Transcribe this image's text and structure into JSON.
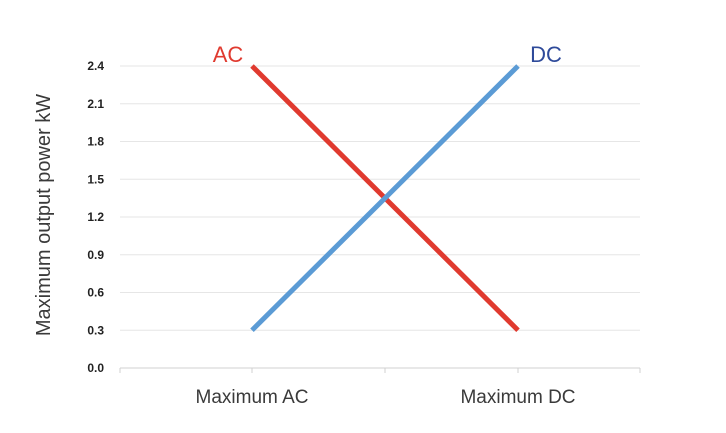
{
  "chart_data": {
    "type": "line",
    "categories": [
      "Maximum AC",
      "Maximum DC"
    ],
    "series": [
      {
        "name": "AC",
        "values": [
          2.4,
          0.3
        ],
        "color": "#e03a2f"
      },
      {
        "name": "DC",
        "values": [
          0.3,
          2.4
        ],
        "color": "#5b9bd5"
      }
    ],
    "title": "",
    "xlabel": "",
    "ylabel": "Maximum output power kW",
    "ylim": [
      0,
      2.4
    ],
    "yticks": [
      "0.0",
      "0.3",
      "0.6",
      "0.9",
      "1.2",
      "1.5",
      "1.8",
      "2.1",
      "2.4"
    ],
    "grid": true,
    "legend": "inline at line ends"
  }
}
